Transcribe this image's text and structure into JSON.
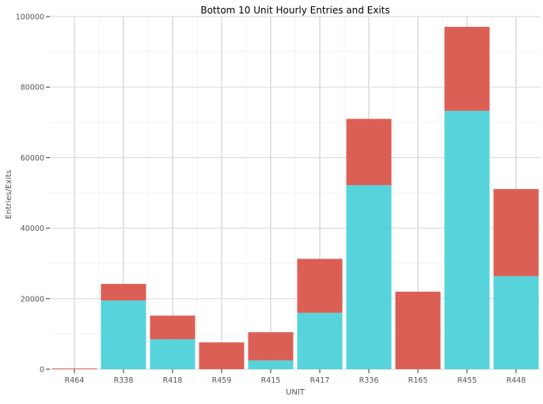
{
  "chart_data": {
    "type": "bar",
    "stacked": true,
    "title": "Bottom 10 Unit Hourly Entries and Exits",
    "xlabel": "UNIT",
    "ylabel": "Entries/Exits",
    "categories": [
      "R464",
      "R338",
      "R418",
      "R459",
      "R415",
      "R417",
      "R336",
      "R165",
      "R455",
      "R448"
    ],
    "series": [
      {
        "color": "#56d3db",
        "values": [
          0,
          19500,
          8500,
          0,
          2500,
          16000,
          52200,
          0,
          73300,
          26400
        ]
      },
      {
        "color": "#dc5f55",
        "values": [
          200,
          4700,
          6700,
          7600,
          8000,
          15300,
          18800,
          22000,
          23800,
          24700
        ]
      }
    ],
    "ylim": [
      0,
      100000
    ],
    "yticks": [
      0,
      20000,
      40000,
      60000,
      80000,
      100000
    ],
    "grid": true,
    "legend": "none"
  }
}
